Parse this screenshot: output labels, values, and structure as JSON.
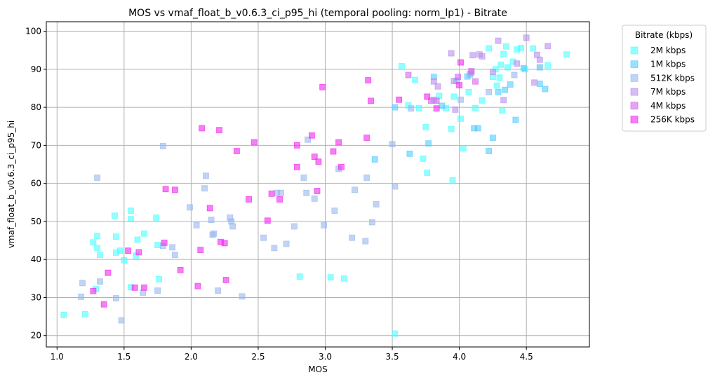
{
  "chart_data": {
    "type": "scatter",
    "title": "MOS vs vmaf_float_b_v0.6.3_ci_p95_hi (temporal pooling: norm_lp1) - Bitrate",
    "xlabel": "MOS",
    "ylabel": "vmaf_float_b_v0.6.3_ci_p95_hi",
    "xlim": [
      0.92,
      4.97
    ],
    "ylim": [
      17,
      102.5
    ],
    "xticks": [
      "1.0",
      "1.5",
      "2.0",
      "2.5",
      "3.0",
      "3.5",
      "4.0",
      "4.5"
    ],
    "yticks": [
      "20",
      "30",
      "40",
      "50",
      "60",
      "70",
      "80",
      "90",
      "100"
    ],
    "grid": true,
    "marker": "square",
    "legend": {
      "title": "Bitrate (kbps)",
      "placement": "outside-top-right"
    },
    "series": [
      {
        "name": "2M kbps",
        "color": "#4dffff",
        "points": [
          [
            1.05,
            25.4
          ],
          [
            1.21,
            25.6
          ],
          [
            1.29,
            32.2
          ],
          [
            1.27,
            44.5
          ],
          [
            1.3,
            46.2
          ],
          [
            1.3,
            43.0
          ],
          [
            1.32,
            41.2
          ],
          [
            1.43,
            51.5
          ],
          [
            1.44,
            46.0
          ],
          [
            1.44,
            41.8
          ],
          [
            1.47,
            42.3
          ],
          [
            1.5,
            39.8
          ],
          [
            1.55,
            52.8
          ],
          [
            1.55,
            50.6
          ],
          [
            1.55,
            32.7
          ],
          [
            1.59,
            41.0
          ],
          [
            1.6,
            45.2
          ],
          [
            1.65,
            46.8
          ],
          [
            1.74,
            51.0
          ],
          [
            1.75,
            43.8
          ],
          [
            1.76,
            34.8
          ],
          [
            2.81,
            35.5
          ],
          [
            3.04,
            35.3
          ],
          [
            3.14,
            35.0
          ],
          [
            3.52,
            20.5
          ],
          [
            3.57,
            90.8
          ],
          [
            3.62,
            80.5
          ],
          [
            3.67,
            87.2
          ],
          [
            3.7,
            79.8
          ],
          [
            3.73,
            66.5
          ],
          [
            3.75,
            74.8
          ],
          [
            3.76,
            62.8
          ],
          [
            3.85,
            83.0
          ],
          [
            3.9,
            79.8
          ],
          [
            3.94,
            74.3
          ],
          [
            3.95,
            60.8
          ],
          [
            3.96,
            82.8
          ],
          [
            4.01,
            77.0
          ],
          [
            4.03,
            69.2
          ],
          [
            4.07,
            84.0
          ],
          [
            4.08,
            88.5
          ],
          [
            4.12,
            79.8
          ],
          [
            4.17,
            81.8
          ],
          [
            4.22,
            95.5
          ],
          [
            4.25,
            88.0
          ],
          [
            4.27,
            90.0
          ],
          [
            4.28,
            85.7
          ],
          [
            4.3,
            87.8
          ],
          [
            4.31,
            91.2
          ],
          [
            4.32,
            79.2
          ],
          [
            4.33,
            94.0
          ],
          [
            4.35,
            96.0
          ],
          [
            4.36,
            90.5
          ],
          [
            4.4,
            92.0
          ],
          [
            4.43,
            95.2
          ],
          [
            4.46,
            95.6
          ],
          [
            4.49,
            90.0
          ],
          [
            4.55,
            95.5
          ],
          [
            4.6,
            90.5
          ],
          [
            4.66,
            91.0
          ],
          [
            4.8,
            93.9
          ]
        ]
      },
      {
        "name": "1M kbps",
        "color": "#55ccff",
        "points": [
          [
            3.37,
            66.3
          ],
          [
            3.52,
            80.0
          ],
          [
            3.63,
            67.8
          ],
          [
            3.77,
            70.5
          ],
          [
            3.81,
            88.0
          ],
          [
            3.87,
            80.4
          ],
          [
            3.98,
            87.0
          ],
          [
            4.06,
            88.1
          ],
          [
            4.11,
            74.5
          ],
          [
            4.14,
            74.5
          ],
          [
            4.22,
            68.5
          ],
          [
            4.25,
            72.0
          ],
          [
            4.29,
            84.0
          ],
          [
            4.34,
            84.6
          ],
          [
            4.38,
            86.0
          ],
          [
            4.42,
            76.7
          ],
          [
            4.48,
            90.3
          ],
          [
            4.6,
            86.2
          ],
          [
            4.64,
            84.8
          ]
        ]
      },
      {
        "name": "512K kbps",
        "color": "#99b8ee",
        "points": [
          [
            1.18,
            30.2
          ],
          [
            1.19,
            33.8
          ],
          [
            1.3,
            61.5
          ],
          [
            1.32,
            34.2
          ],
          [
            1.44,
            29.8
          ],
          [
            1.48,
            24.0
          ],
          [
            1.64,
            31.3
          ],
          [
            1.75,
            31.8
          ],
          [
            1.79,
            69.8
          ],
          [
            1.79,
            43.6
          ],
          [
            1.86,
            43.2
          ],
          [
            1.88,
            41.2
          ],
          [
            1.99,
            53.7
          ],
          [
            2.04,
            49.0
          ],
          [
            2.1,
            58.7
          ],
          [
            2.11,
            62.0
          ],
          [
            2.15,
            50.4
          ],
          [
            2.17,
            46.8
          ],
          [
            2.16,
            46.5
          ],
          [
            2.2,
            31.8
          ],
          [
            2.29,
            51.0
          ],
          [
            2.3,
            50.0
          ],
          [
            2.31,
            48.7
          ],
          [
            2.38,
            30.3
          ],
          [
            2.54,
            45.7
          ],
          [
            2.62,
            43.0
          ],
          [
            2.64,
            57.5
          ],
          [
            2.67,
            57.5
          ],
          [
            2.71,
            44.1
          ],
          [
            2.77,
            48.7
          ],
          [
            2.84,
            61.5
          ],
          [
            2.86,
            57.5
          ],
          [
            2.87,
            71.5
          ],
          [
            2.92,
            56.0
          ],
          [
            2.99,
            49.0
          ],
          [
            3.07,
            52.8
          ],
          [
            3.1,
            63.8
          ],
          [
            3.2,
            45.7
          ],
          [
            3.22,
            58.3
          ],
          [
            3.3,
            44.8
          ],
          [
            3.31,
            61.5
          ],
          [
            3.35,
            49.8
          ],
          [
            3.38,
            54.5
          ],
          [
            3.5,
            70.3
          ],
          [
            3.52,
            59.2
          ],
          [
            3.64,
            79.7
          ],
          [
            3.81,
            82.0
          ],
          [
            4.01,
            82.0
          ],
          [
            4.08,
            88.8
          ],
          [
            4.22,
            84.0
          ],
          [
            4.41,
            88.5
          ],
          [
            4.6,
            90.5
          ]
        ]
      },
      {
        "name": "7M kbps",
        "color": "#b98fee",
        "points": [
          [
            3.94,
            94.2
          ],
          [
            3.96,
            86.9
          ],
          [
            3.97,
            79.4
          ],
          [
            4.09,
            89.2
          ],
          [
            4.1,
            93.7
          ],
          [
            4.15,
            93.9
          ],
          [
            4.17,
            93.4
          ],
          [
            4.25,
            89.3
          ],
          [
            4.29,
            97.5
          ],
          [
            4.33,
            81.9
          ],
          [
            4.43,
            91.5
          ],
          [
            4.5,
            98.3
          ],
          [
            4.56,
            86.5
          ],
          [
            4.58,
            93.8
          ],
          [
            4.6,
            92.5
          ],
          [
            4.66,
            96.1
          ],
          [
            3.81,
            86.8
          ],
          [
            3.84,
            85.5
          ]
        ]
      },
      {
        "name": "4M kbps",
        "color": "#d466ee",
        "points": [
          [
            3.62,
            88.5
          ],
          [
            3.79,
            81.7
          ],
          [
            3.83,
            81.7
          ],
          [
            3.99,
            88.0
          ],
          [
            4.12,
            86.8
          ],
          [
            4.09,
            89.5
          ]
        ]
      },
      {
        "name": "256K kbps",
        "color": "#f028ee",
        "points": [
          [
            1.27,
            31.7
          ],
          [
            1.35,
            28.2
          ],
          [
            1.38,
            36.5
          ],
          [
            1.53,
            42.3
          ],
          [
            1.61,
            41.9
          ],
          [
            1.65,
            32.6
          ],
          [
            1.58,
            32.6
          ],
          [
            1.8,
            44.4
          ],
          [
            1.81,
            58.5
          ],
          [
            1.88,
            58.3
          ],
          [
            1.92,
            37.2
          ],
          [
            2.05,
            33.0
          ],
          [
            2.07,
            42.5
          ],
          [
            2.08,
            74.5
          ],
          [
            2.14,
            53.5
          ],
          [
            2.21,
            74.0
          ],
          [
            2.22,
            44.6
          ],
          [
            2.25,
            44.3
          ],
          [
            2.26,
            34.6
          ],
          [
            2.34,
            68.5
          ],
          [
            2.43,
            55.8
          ],
          [
            2.47,
            70.8
          ],
          [
            2.57,
            50.2
          ],
          [
            2.6,
            57.3
          ],
          [
            2.66,
            55.8
          ],
          [
            2.79,
            70.0
          ],
          [
            2.79,
            64.3
          ],
          [
            2.9,
            72.6
          ],
          [
            2.92,
            67.0
          ],
          [
            2.94,
            58.0
          ],
          [
            2.95,
            65.7
          ],
          [
            2.98,
            85.3
          ],
          [
            3.06,
            68.4
          ],
          [
            3.1,
            70.8
          ],
          [
            3.12,
            64.3
          ],
          [
            3.31,
            72.0
          ],
          [
            3.32,
            87.1
          ],
          [
            3.34,
            81.7
          ],
          [
            3.55,
            82.0
          ],
          [
            3.76,
            82.8
          ],
          [
            3.83,
            79.7
          ],
          [
            4.0,
            85.8
          ],
          [
            4.01,
            91.8
          ]
        ]
      }
    ]
  }
}
